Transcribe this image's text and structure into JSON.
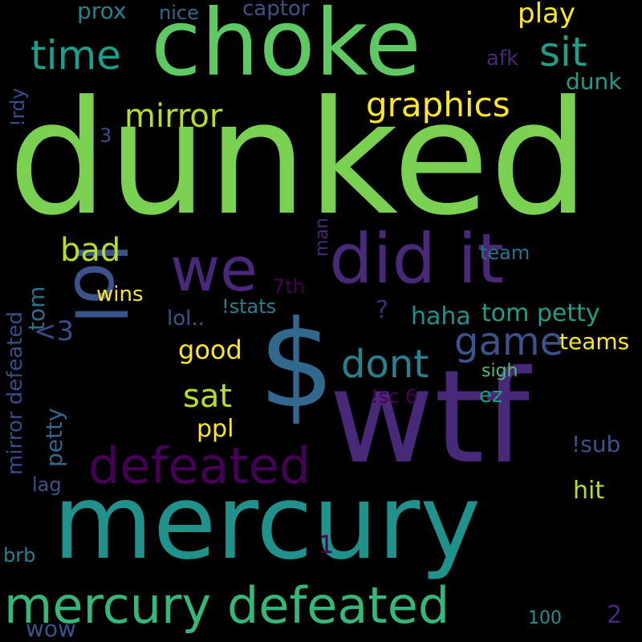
{
  "background": "#000000",
  "words": [
    {
      "text": "dunked",
      "color": "#7ad151",
      "rot": 0
    },
    {
      "text": "wtf",
      "color": "#482878",
      "rot": 0
    },
    {
      "text": "mercury",
      "color": "#21918c",
      "rot": 0
    },
    {
      "text": "choke",
      "color": "#5ec962",
      "rot": 0
    },
    {
      "text": "$",
      "color": "#31688e",
      "rot": 0
    },
    {
      "text": "lol",
      "color": "#3b528b",
      "rot": 90
    },
    {
      "text": "did it",
      "color": "#482878",
      "rot": 0
    },
    {
      "text": "mercury defeated",
      "color": "#35b779",
      "rot": 0
    },
    {
      "text": "we",
      "color": "#482878",
      "rot": 0
    },
    {
      "text": "defeated",
      "color": "#440154",
      "rot": 0
    },
    {
      "text": "time",
      "color": "#1f9e89",
      "rot": 0
    },
    {
      "text": "sit",
      "color": "#1f9e89",
      "rot": 0
    },
    {
      "text": "game",
      "color": "#3b528b",
      "rot": 0
    },
    {
      "text": "dont",
      "color": "#26828e",
      "rot": 0
    },
    {
      "text": "graphics",
      "color": "#fde725",
      "rot": 0
    },
    {
      "text": "mirror",
      "color": "#b5de2b",
      "rot": 0
    },
    {
      "text": "bad",
      "color": "#b5de2b",
      "rot": 0
    },
    {
      "text": "sat",
      "color": "#b5de2b",
      "rot": 0
    },
    {
      "text": "play",
      "color": "#fde725",
      "rot": 0
    },
    {
      "text": "tom petty",
      "color": "#1f9e89",
      "rot": 0
    },
    {
      "text": "mirror defeated",
      "color": "#3e4989",
      "rot": -90
    },
    {
      "text": "petty",
      "color": "#31688e",
      "rot": -90
    },
    {
      "text": "tom",
      "color": "#2c728e",
      "rot": -90
    },
    {
      "text": "<3",
      "color": "#3e4989",
      "rot": 0
    },
    {
      "text": "good",
      "color": "#fde725",
      "rot": 0
    },
    {
      "text": "ppl",
      "color": "#fde725",
      "rot": 0
    },
    {
      "text": "haha",
      "color": "#21918c",
      "rot": 0
    },
    {
      "text": "teams",
      "color": "#fde725",
      "rot": 0
    },
    {
      "text": "prox",
      "color": "#26828e",
      "rot": 0
    },
    {
      "text": "nice",
      "color": "#31688e",
      "rot": 0
    },
    {
      "text": "captor",
      "color": "#3b528b",
      "rot": 0
    },
    {
      "text": "afk",
      "color": "#482878",
      "rot": 0
    },
    {
      "text": "dunk",
      "color": "#1f9e89",
      "rot": 0
    },
    {
      "text": "!rdy",
      "color": "#3e4989",
      "rot": -90
    },
    {
      "text": "3",
      "color": "#3e4989",
      "rot": 0
    },
    {
      "text": "man",
      "color": "#482878",
      "rot": -90
    },
    {
      "text": "team",
      "color": "#2c728e",
      "rot": 0
    },
    {
      "text": "7th",
      "color": "#440154",
      "rot": 0
    },
    {
      "text": "wins",
      "color": "#fde725",
      "rot": 0
    },
    {
      "text": "!stats",
      "color": "#26828e",
      "rot": 0
    },
    {
      "text": "lol..",
      "color": "#3b528b",
      "rot": 0
    },
    {
      "text": "?",
      "color": "#482878",
      "rot": 0
    },
    {
      "text": "sigh",
      "color": "#4ac16d",
      "rot": 0
    },
    {
      "text": "!sc 6",
      "color": "#440154",
      "rot": 0
    },
    {
      "text": "ez",
      "color": "#1f9e89",
      "rot": 0
    },
    {
      "text": "!sub",
      "color": "#3b528b",
      "rot": 0
    },
    {
      "text": "hit",
      "color": "#b5de2b",
      "rot": 0
    },
    {
      "text": "lag",
      "color": "#3b528b",
      "rot": 0
    },
    {
      "text": "1",
      "color": "#440154",
      "rot": 0
    },
    {
      "text": "brb",
      "color": "#26828e",
      "rot": 0
    },
    {
      "text": "wow",
      "color": "#3b528b",
      "rot": 0
    },
    {
      "text": "100",
      "color": "#21918c",
      "rot": 0
    },
    {
      "text": "2",
      "color": "#482878",
      "rot": 0
    }
  ]
}
